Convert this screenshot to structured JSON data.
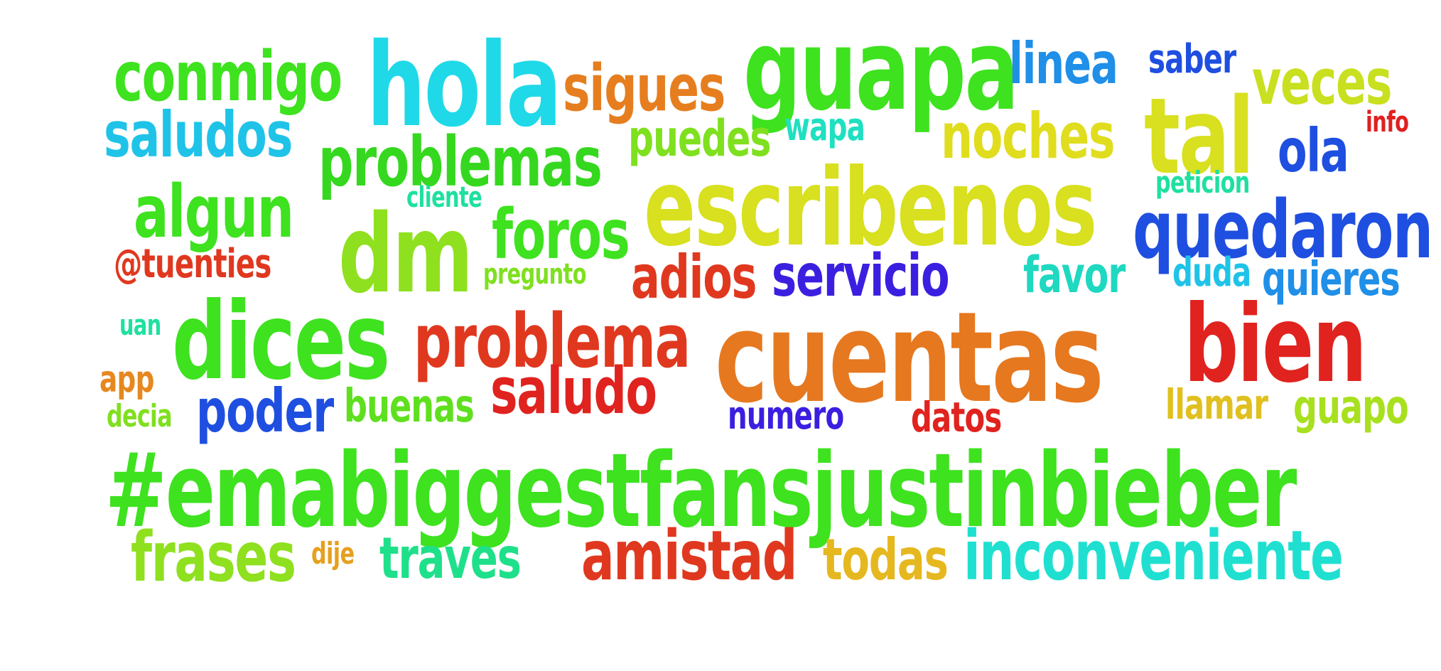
{
  "word_cloud": {
    "words": [
      {
        "text": "conmigo",
        "color": "#3ee21f"
      },
      {
        "text": "hola",
        "color": "#1fd9e8"
      },
      {
        "text": "sigues",
        "color": "#e67e1f"
      },
      {
        "text": "guapa",
        "color": "#3ee21f"
      },
      {
        "text": "linea",
        "color": "#1f8fe8"
      },
      {
        "text": "saber",
        "color": "#1f4fe0"
      },
      {
        "text": "veces",
        "color": "#c8e01f"
      },
      {
        "text": "saludos",
        "color": "#1fc3e8"
      },
      {
        "text": "problemas",
        "color": "#35d81f"
      },
      {
        "text": "puedes",
        "color": "#7fe01f"
      },
      {
        "text": "wapa",
        "color": "#1fe0c0"
      },
      {
        "text": "noches",
        "color": "#e0dd1f"
      },
      {
        "text": "tal",
        "color": "#d8e01f"
      },
      {
        "text": "info",
        "color": "#e01f1f"
      },
      {
        "text": "ola",
        "color": "#1f4fe0"
      },
      {
        "text": "algun",
        "color": "#3ee21f"
      },
      {
        "text": "cliente",
        "color": "#1fe0a0"
      },
      {
        "text": "escribenos",
        "color": "#d8e01f"
      },
      {
        "text": "peticion",
        "color": "#1fe0a0"
      },
      {
        "text": "dm",
        "color": "#8fe01f"
      },
      {
        "text": "foros",
        "color": "#3ee21f"
      },
      {
        "text": "quedaron",
        "color": "#1f4fe0"
      },
      {
        "text": "@tuenties",
        "color": "#e0381f"
      },
      {
        "text": "pregunto",
        "color": "#7fe01f"
      },
      {
        "text": "adios",
        "color": "#e0381f"
      },
      {
        "text": "servicio",
        "color": "#3b1fe0"
      },
      {
        "text": "favor",
        "color": "#1fd8c0"
      },
      {
        "text": "duda",
        "color": "#1fc3e8"
      },
      {
        "text": "quieres",
        "color": "#1f8fe8"
      },
      {
        "text": "uan",
        "color": "#1fe0a0"
      },
      {
        "text": "dices",
        "color": "#3ee21f"
      },
      {
        "text": "problema",
        "color": "#e0381f"
      },
      {
        "text": "cuentas",
        "color": "#e6781f"
      },
      {
        "text": "bien",
        "color": "#e0231f"
      },
      {
        "text": "app",
        "color": "#e6881f"
      },
      {
        "text": "saludo",
        "color": "#e0231f"
      },
      {
        "text": "decia",
        "color": "#7fe01f"
      },
      {
        "text": "poder",
        "color": "#1f4fe0"
      },
      {
        "text": "buenas",
        "color": "#5fe01f"
      },
      {
        "text": "numero",
        "color": "#3b1fe0"
      },
      {
        "text": "datos",
        "color": "#e0231f"
      },
      {
        "text": "llamar",
        "color": "#e0c01f"
      },
      {
        "text": "guapo",
        "color": "#a8e01f"
      },
      {
        "text": "#emabiggestfansjustinbieber",
        "color": "#3ee21f"
      },
      {
        "text": "frases",
        "color": "#8fe01f"
      },
      {
        "text": "dije",
        "color": "#e6a01f"
      },
      {
        "text": "traves",
        "color": "#1fe08a"
      },
      {
        "text": "amistad",
        "color": "#e0381f"
      },
      {
        "text": "todas",
        "color": "#e6b81f"
      },
      {
        "text": "inconveniente",
        "color": "#1fe0d0"
      }
    ]
  }
}
